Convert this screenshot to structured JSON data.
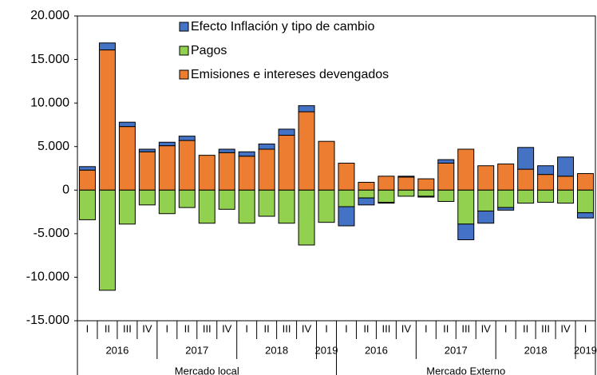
{
  "chart_data": {
    "type": "stacked-bar",
    "groups": [
      {
        "name": "Mercado local",
        "years": [
          {
            "name": "2016",
            "quarters": [
              "I",
              "II",
              "III",
              "IV"
            ]
          },
          {
            "name": "2017",
            "quarters": [
              "I",
              "II",
              "III",
              "IV"
            ]
          },
          {
            "name": "2018",
            "quarters": [
              "I",
              "II",
              "III",
              "IV"
            ]
          },
          {
            "name": "2019",
            "quarters": [
              "I"
            ]
          }
        ]
      },
      {
        "name": "Mercado Externo",
        "years": [
          {
            "name": "2016",
            "quarters": [
              "I",
              "II",
              "III",
              "IV"
            ]
          },
          {
            "name": "2017",
            "quarters": [
              "I",
              "II",
              "III",
              "IV"
            ]
          },
          {
            "name": "2018",
            "quarters": [
              "I",
              "II",
              "III",
              "IV"
            ]
          },
          {
            "name": "2019",
            "quarters": [
              "I"
            ]
          }
        ]
      }
    ],
    "series": [
      {
        "name": "Efecto Inflación y tipo de cambio",
        "color": "#4472c4",
        "values": [
          400,
          800,
          500,
          300,
          400,
          500,
          0,
          400,
          500,
          600,
          700,
          700,
          0,
          -2200,
          -800,
          -100,
          100,
          -100,
          400,
          -1800,
          -1400,
          -300,
          2500,
          1000,
          2200,
          -600
        ]
      },
      {
        "name": "Pagos",
        "color": "#92d050",
        "values": [
          -3400,
          -11500,
          -3900,
          -1700,
          -2700,
          -2000,
          -3800,
          -2200,
          -3800,
          -3000,
          -3800,
          -6300,
          -3700,
          -1900,
          -900,
          -1400,
          -700,
          -700,
          -1300,
          -3900,
          -2400,
          -2000,
          -1500,
          -1400,
          -1500,
          -2600
        ]
      },
      {
        "name": "Emisiones e intereses devengados",
        "color": "#ed7d31",
        "values": [
          2300,
          16100,
          7300,
          4400,
          5100,
          5700,
          4000,
          4300,
          3900,
          4700,
          6300,
          9000,
          5600,
          3100,
          900,
          1600,
          1500,
          1300,
          3100,
          4700,
          2800,
          3000,
          2400,
          1800,
          1600,
          1900
        ]
      }
    ],
    "ylim": [
      -15000,
      20000
    ],
    "yticks": [
      {
        "value": -15000,
        "label": "-15.000"
      },
      {
        "value": -10000,
        "label": "-10.000"
      },
      {
        "value": -5000,
        "label": "-5.000"
      },
      0,
      {
        "value": 5000,
        "label": "5.000"
      },
      {
        "value": 10000,
        "label": "10.000"
      },
      {
        "value": 15000,
        "label": "15.000"
      },
      {
        "value": 20000,
        "label": "20.000"
      }
    ],
    "legend": "top-center"
  }
}
